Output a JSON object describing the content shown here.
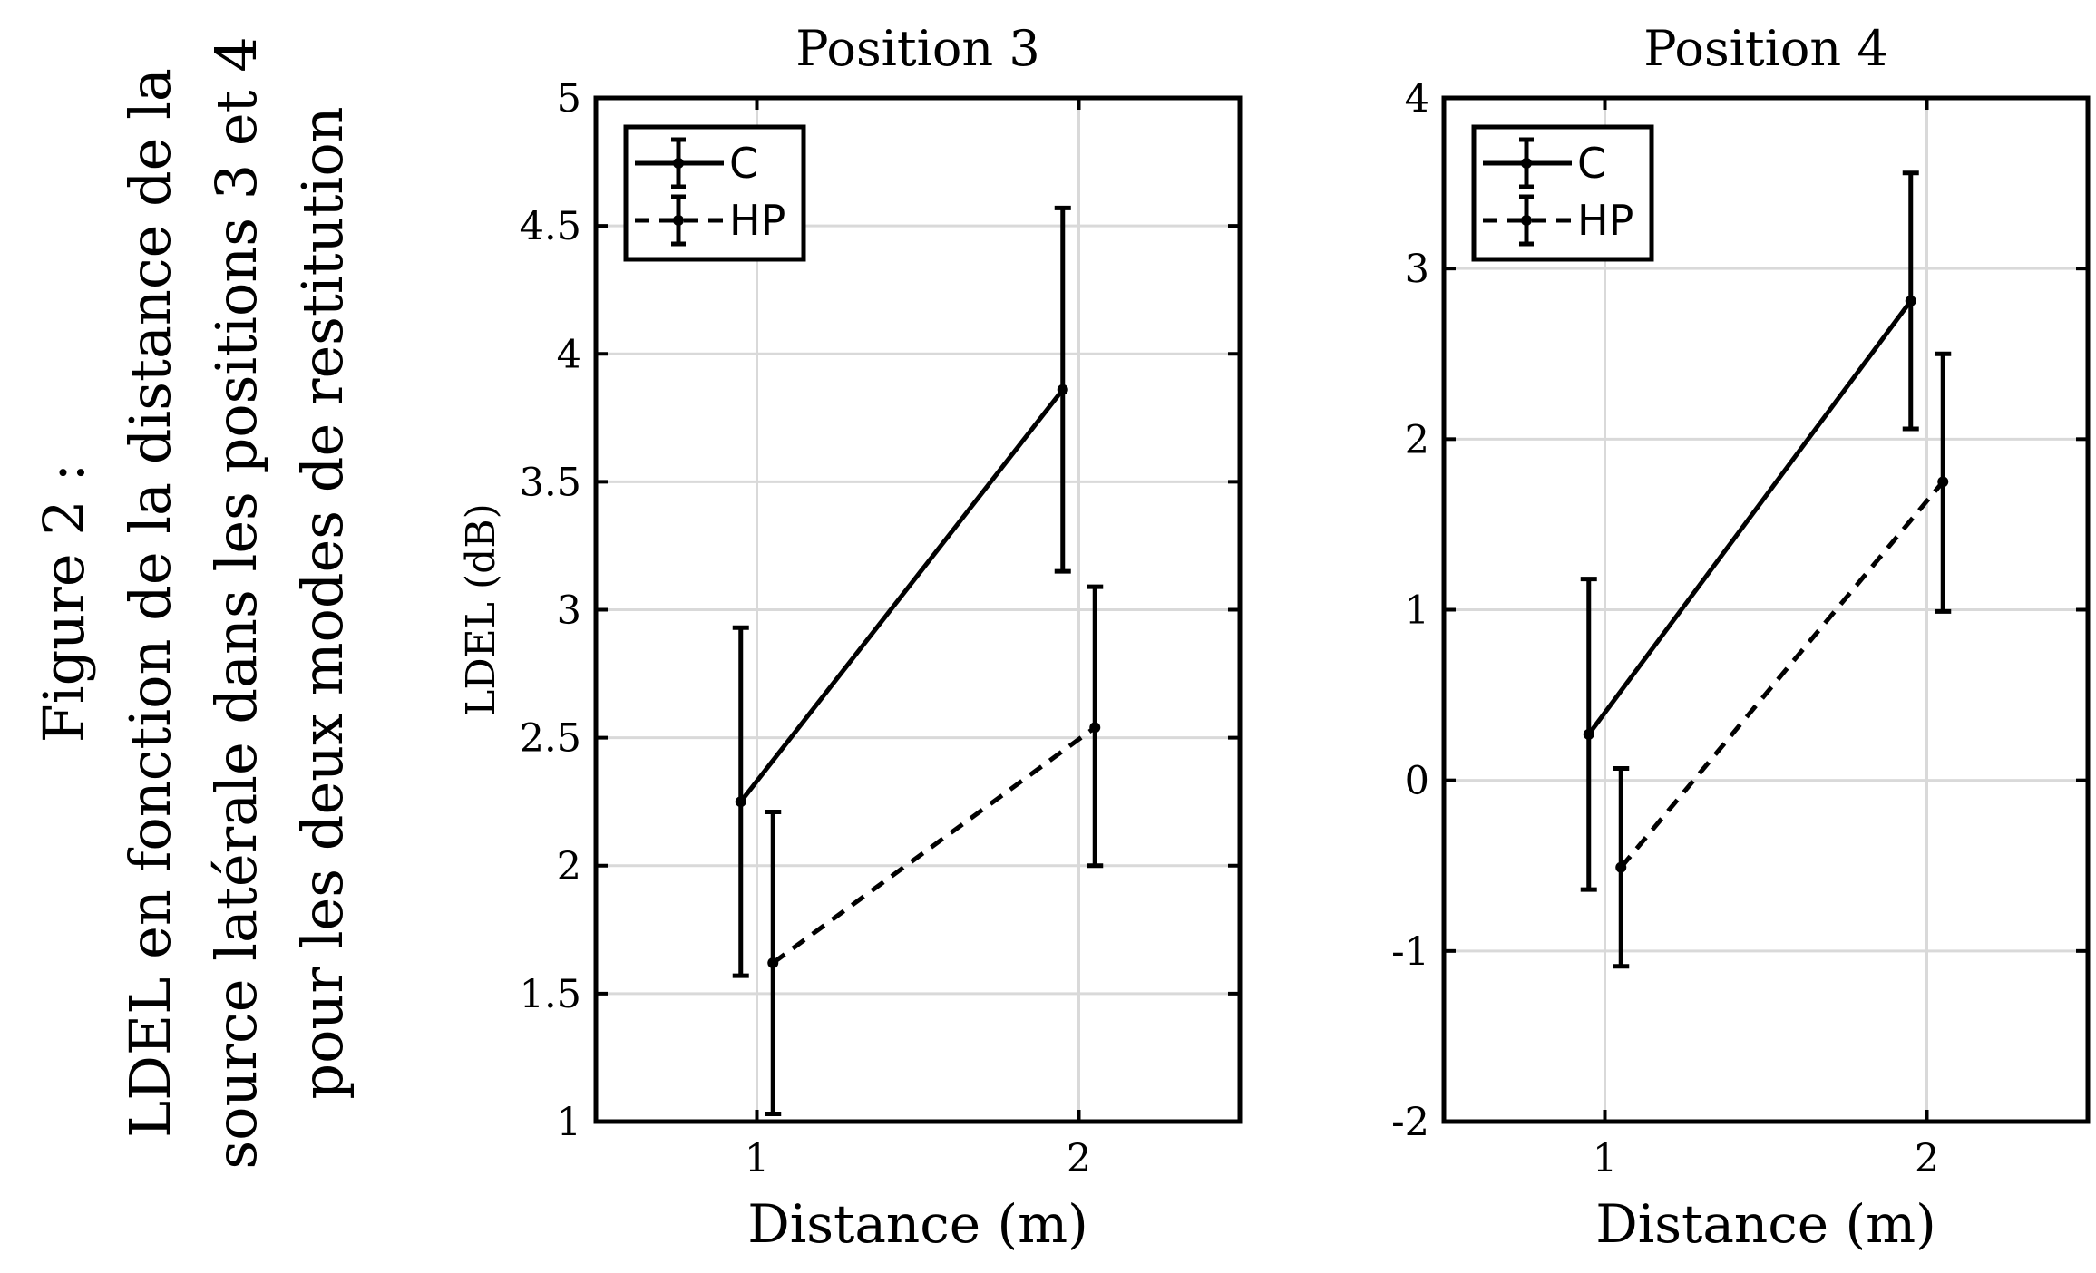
{
  "caption": {
    "lines": [
      "Figure 2 :",
      "LDEL en fonction de la distance de la",
      "source latérale dans les positions 3 et 4",
      "pour les deux modes de restitution"
    ]
  },
  "chart_data": [
    {
      "type": "line",
      "title": "Position 3",
      "xlabel": "Distance (m)",
      "ylabel": "LDEL (dB)",
      "xlim": [
        0.5,
        2.5
      ],
      "ylim": [
        1,
        5
      ],
      "xticks": [
        1,
        2
      ],
      "yticks": [
        1,
        1.5,
        2,
        2.5,
        3,
        3.5,
        4,
        4.5,
        5
      ],
      "grid": true,
      "legend_position": "top-left",
      "series": [
        {
          "name": "C",
          "style": "solid",
          "x": [
            0.95,
            1.95
          ],
          "y": [
            2.25,
            3.86
          ],
          "err_low": [
            1.57,
            3.15
          ],
          "err_high": [
            2.93,
            4.57
          ]
        },
        {
          "name": "HP",
          "style": "dashed",
          "x": [
            1.05,
            2.05
          ],
          "y": [
            1.62,
            2.54
          ],
          "err_low": [
            1.03,
            2.0
          ],
          "err_high": [
            2.21,
            3.09
          ]
        }
      ]
    },
    {
      "type": "line",
      "title": "Position 4",
      "xlabel": "Distance (m)",
      "ylabel": "",
      "xlim": [
        0.5,
        2.5
      ],
      "ylim": [
        -2,
        4
      ],
      "xticks": [
        1,
        2
      ],
      "yticks": [
        -2,
        -1,
        0,
        1,
        2,
        3,
        4
      ],
      "grid": true,
      "legend_position": "top-left",
      "series": [
        {
          "name": "C",
          "style": "solid",
          "x": [
            0.95,
            1.95
          ],
          "y": [
            0.27,
            2.81
          ],
          "err_low": [
            -0.64,
            2.06
          ],
          "err_high": [
            1.18,
            3.56
          ]
        },
        {
          "name": "HP",
          "style": "dashed",
          "x": [
            1.05,
            2.05
          ],
          "y": [
            -0.51,
            1.75
          ],
          "err_low": [
            -1.09,
            0.99
          ],
          "err_high": [
            0.07,
            2.5
          ]
        }
      ]
    }
  ]
}
